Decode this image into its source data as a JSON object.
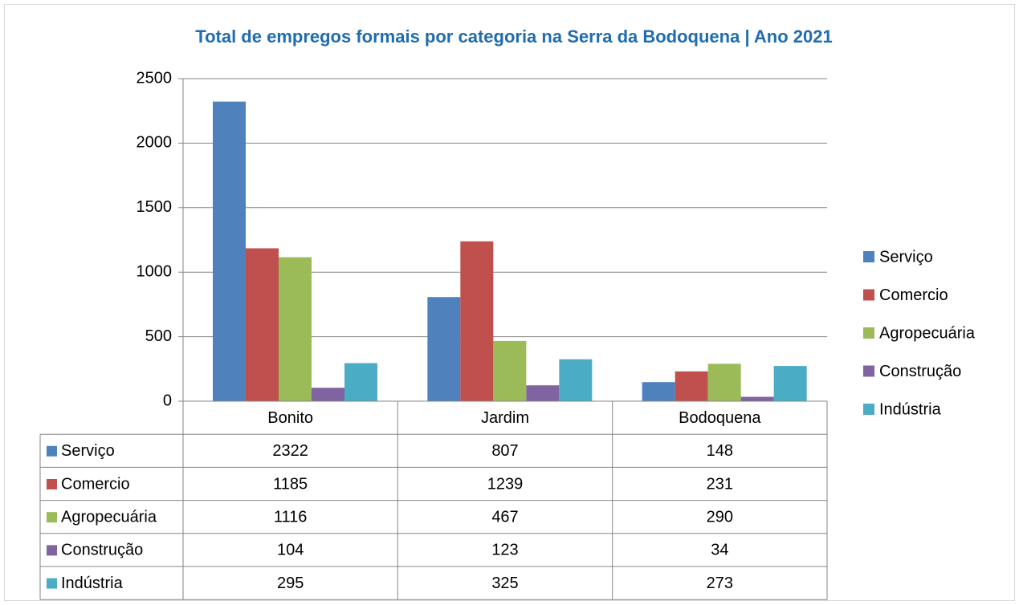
{
  "chart_data": {
    "type": "bar",
    "title": "Total de empregos formais por categoria na Serra da Bodoquena  | Ano 2021",
    "categories": [
      "Bonito",
      "Jardim",
      "Bodoquena"
    ],
    "series": [
      {
        "name": "Serviço",
        "color": "#4f81bd",
        "values": [
          2322,
          807,
          148
        ]
      },
      {
        "name": "Comercio",
        "color": "#c0504d",
        "values": [
          1185,
          1239,
          231
        ]
      },
      {
        "name": "Agropecuária",
        "color": "#9bbb59",
        "values": [
          1116,
          467,
          290
        ]
      },
      {
        "name": "Construção",
        "color": "#8064a2",
        "values": [
          104,
          123,
          34
        ]
      },
      {
        "name": "Indústria",
        "color": "#4bacc6",
        "values": [
          295,
          325,
          273
        ]
      }
    ],
    "ylim": [
      0,
      2500
    ],
    "yticks": [
      0,
      500,
      1000,
      1500,
      2000,
      2500
    ],
    "grid": true,
    "legend": "right",
    "data_table": true
  }
}
